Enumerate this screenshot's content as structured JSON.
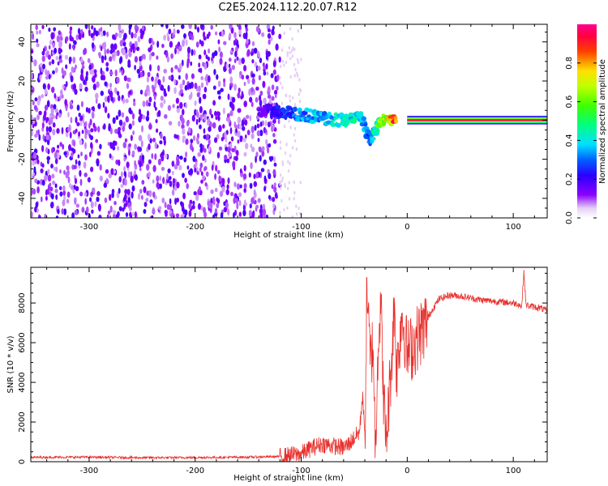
{
  "title": "C2E5.2024.112.20.07.R12",
  "chart_data": [
    {
      "type": "heatmap",
      "xlabel": "Height of straight line (km)",
      "ylabel": "Frequency (Hz)",
      "xlim": [
        -355,
        132
      ],
      "ylim": [
        -50,
        49
      ],
      "xticks": [
        -300,
        -200,
        -100,
        0,
        100
      ],
      "xtick_labels": [
        "-300",
        "-200",
        "-100",
        "0",
        "100"
      ],
      "yticks": [
        -40,
        -20,
        0,
        20,
        40
      ],
      "ytick_labels": [
        "-40",
        "-20",
        "0",
        "20",
        "40"
      ],
      "colorbar": {
        "label": "Normalized spectral amplitude",
        "range": [
          0,
          1
        ],
        "ticks": [
          0.0,
          0.2,
          0.4,
          0.6,
          0.8
        ],
        "tick_labels": [
          "0.0",
          "0.2",
          "0.4",
          "0.6",
          "0.8"
        ]
      },
      "features": {
        "noise_region_x": [
          -355,
          -120
        ],
        "sparse_region_x": [
          -120,
          -100
        ],
        "spread_trace": [
          {
            "x": -140,
            "f": 5,
            "amp": 0.15
          },
          {
            "x": -120,
            "f": 4,
            "amp": 0.25
          },
          {
            "x": -100,
            "f": 3,
            "amp": 0.35
          },
          {
            "x": -80,
            "f": 1,
            "amp": 0.4
          },
          {
            "x": -60,
            "f": 0,
            "amp": 0.45
          },
          {
            "x": -45,
            "f": 3,
            "amp": 0.45
          },
          {
            "x": -35,
            "f": -10,
            "amp": 0.3
          },
          {
            "x": -25,
            "f": 0,
            "amp": 0.7
          },
          {
            "x": -10,
            "f": 1,
            "amp": 0.9
          }
        ],
        "steady_line": {
          "x_start": 0,
          "x_end": 132,
          "f": 0,
          "amp": 1.0
        }
      },
      "grid": false
    },
    {
      "type": "line",
      "xlabel": "Height of straight line (km)",
      "ylabel": "SNR (10 * v/v)",
      "xlim": [
        -355,
        132
      ],
      "ylim": [
        0,
        9800
      ],
      "xticks": [
        -300,
        -200,
        -100,
        0,
        100
      ],
      "xtick_labels": [
        "-300",
        "-200",
        "-100",
        "0",
        "100"
      ],
      "yticks": [
        0,
        2000,
        4000,
        6000,
        8000
      ],
      "ytick_labels": [
        "0",
        "2000",
        "4000",
        "6000",
        "8000"
      ],
      "series": [
        {
          "color": "#e8302c",
          "x": [
            -355,
            -300,
            -250,
            -200,
            -150,
            -120,
            -100,
            -90,
            -80,
            -70,
            -60,
            -55,
            -50,
            -45,
            -42,
            -40,
            -38,
            -35,
            -32,
            -30,
            -28,
            -25,
            -22,
            -20,
            -18,
            -15,
            -12,
            -10,
            -5,
            0,
            5,
            10,
            15,
            20,
            25,
            30,
            35,
            40,
            50,
            60,
            70,
            80,
            90,
            100,
            105,
            108,
            110,
            112,
            115,
            120,
            125,
            132
          ],
          "y": [
            220,
            230,
            200,
            210,
            230,
            260,
            400,
            700,
            900,
            800,
            700,
            900,
            1200,
            1500,
            3500,
            900,
            9000,
            5000,
            6000,
            200,
            5500,
            8000,
            3000,
            1000,
            2500,
            5000,
            8000,
            4500,
            7500,
            5500,
            5800,
            6300,
            6700,
            7300,
            7800,
            8200,
            8300,
            8400,
            8350,
            8250,
            8150,
            8100,
            8050,
            8000,
            7950,
            7800,
            9600,
            7900,
            7850,
            7800,
            7750,
            7600
          ]
        }
      ],
      "grid": false
    }
  ]
}
